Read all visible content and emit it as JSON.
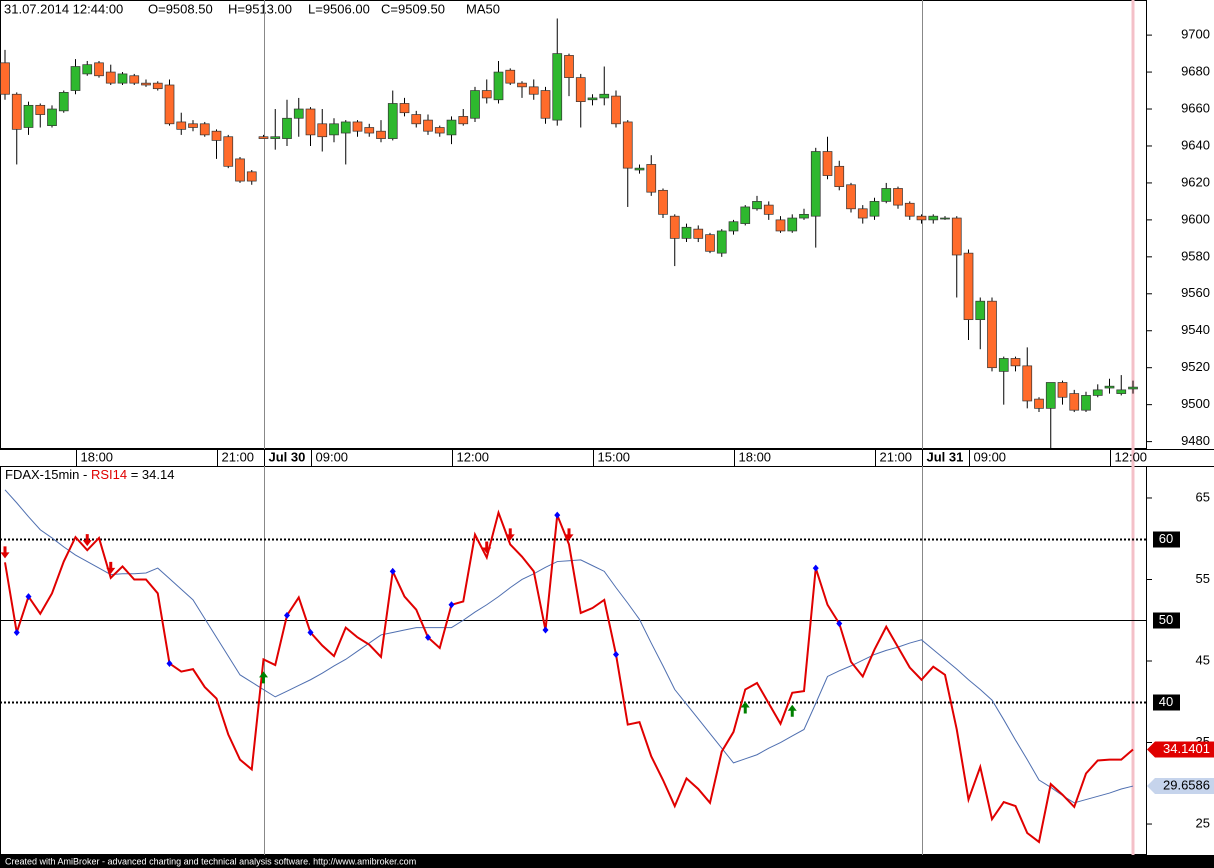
{
  "chart_data": [
    {
      "type": "candlestick",
      "title": "31.07.2014 12:44:00",
      "ohlc_labels": [
        "O=9508.50",
        "H=9513.00",
        "L=9506.00",
        "C=9509.50"
      ],
      "indicator_label": "MA50",
      "up_color": "#2eb82e",
      "down_color": "#ff6b2b",
      "open": [
        9685,
        9668,
        9650,
        9662,
        9651,
        9659,
        9670,
        9679,
        9685,
        9680,
        9674,
        9678,
        9674,
        9674,
        9673,
        9653,
        9652,
        9652,
        9648,
        9645,
        9633,
        9626,
        9645,
        9644,
        9644,
        9655,
        9660,
        9652,
        9646,
        9647,
        9653,
        9650,
        9648,
        9644,
        9663,
        9657,
        9654,
        9650,
        9646,
        9656,
        9655,
        9670,
        9665,
        9681,
        9674,
        9672,
        9670,
        9654,
        9689,
        9677,
        9665,
        9666,
        9667,
        9653,
        9627,
        9630,
        9616,
        9602,
        9590,
        9595,
        9592,
        9582,
        9594,
        9598,
        9606,
        9608,
        9600,
        9594,
        9601,
        9602,
        9637,
        9629,
        9619,
        9606,
        9602,
        9610,
        9617,
        9609,
        9602,
        9600,
        9601,
        9601,
        9582,
        9546,
        9556,
        9518,
        9525,
        9521,
        9503,
        9498,
        9512,
        9506,
        9497,
        9505,
        9509,
        9506,
        9508.5
      ],
      "high": [
        9692,
        9669,
        9664,
        9663,
        9662,
        9670,
        9687,
        9686,
        9686,
        9684,
        9680,
        9679,
        9676,
        9675,
        9676,
        9658,
        9654,
        9653,
        9649,
        9646,
        9634,
        9627,
        9646,
        9660,
        9665,
        9666,
        9661,
        9660,
        9655,
        9654,
        9654,
        9652,
        9654,
        9670,
        9666,
        9659,
        9657,
        9651,
        9656,
        9660,
        9672,
        9676,
        9686,
        9682,
        9675,
        9676,
        9672,
        9709,
        9690,
        9679,
        9668,
        9683,
        9670,
        9654,
        9630,
        9635,
        9617,
        9603,
        9598,
        9597,
        9593,
        9595,
        9600,
        9608,
        9613,
        9610,
        9602,
        9603,
        9606,
        9639,
        9645,
        9632,
        9620,
        9608,
        9612,
        9620,
        9618,
        9610,
        9603,
        9603,
        9602,
        9602,
        9584,
        9558,
        9558,
        9526,
        9526,
        9531,
        9504,
        9512,
        9513,
        9508,
        9507,
        9511,
        9514,
        9516,
        9513
      ],
      "low": [
        9665,
        9630,
        9646,
        9650,
        9650,
        9658,
        9668,
        9678,
        9677,
        9673,
        9673,
        9673,
        9672,
        9670,
        9651,
        9646,
        9648,
        9645,
        9633,
        9628,
        9620,
        9619,
        9644,
        9638,
        9640,
        9645,
        9640,
        9637,
        9642,
        9630,
        9645,
        9645,
        9642,
        9643,
        9656,
        9650,
        9646,
        9645,
        9641,
        9651,
        9653,
        9663,
        9663,
        9673,
        9666,
        9665,
        9652,
        9651,
        9667,
        9650,
        9662,
        9662,
        9650,
        9607,
        9625,
        9613,
        9601,
        9575,
        9588,
        9588,
        9582,
        9580,
        9592,
        9597,
        9605,
        9600,
        9593,
        9593,
        9600,
        9585,
        9622,
        9616,
        9604,
        9598,
        9600,
        9609,
        9606,
        9600,
        9598,
        9598,
        9600,
        9558,
        9535,
        9530,
        9518,
        9500,
        9518,
        9498,
        9496,
        9476,
        9500,
        9496,
        9496,
        9504,
        9506,
        9505,
        9506
      ],
      "close": [
        9668,
        9649,
        9662,
        9657,
        9660,
        9669,
        9683,
        9684,
        9678,
        9674,
        9679,
        9674,
        9673,
        9671,
        9652,
        9649,
        9650,
        9646,
        9643,
        9629,
        9621,
        9621,
        9644,
        9645,
        9655,
        9660,
        9646,
        9645,
        9652,
        9653,
        9648,
        9647,
        9644,
        9663,
        9658,
        9652,
        9648,
        9647,
        9654,
        9652,
        9670,
        9666,
        9680,
        9674,
        9672,
        9668,
        9655,
        9690,
        9677,
        9664,
        9666,
        9668,
        9652,
        9628,
        9628,
        9615,
        9603,
        9590,
        9596,
        9590,
        9583,
        9594,
        9599,
        9607,
        9610,
        9603,
        9594,
        9601,
        9603,
        9637,
        9624,
        9618,
        9606,
        9601,
        9610,
        9617,
        9608,
        9602,
        9600,
        9602,
        9601,
        9581,
        9546,
        9556,
        9520,
        9525,
        9521,
        9502,
        9498,
        9512,
        9504,
        9497,
        9505,
        9508,
        9510,
        9508,
        9509.5
      ],
      "ylim": [
        9476,
        9719
      ],
      "yticks": [
        9480,
        9500,
        9520,
        9540,
        9560,
        9580,
        9600,
        9620,
        9640,
        9660,
        9680,
        9700
      ],
      "xticks": [
        {
          "value": 6,
          "label": "18:00"
        },
        {
          "value": 18,
          "label": "21:00"
        },
        {
          "value": 22,
          "label": "Jul 30",
          "bold": true
        },
        {
          "value": 26,
          "label": "09:00"
        },
        {
          "value": 38,
          "label": "12:00"
        },
        {
          "value": 50,
          "label": "15:00"
        },
        {
          "value": 62,
          "label": "18:00"
        },
        {
          "value": 74,
          "label": "21:00"
        },
        {
          "value": 78,
          "label": "Jul 31",
          "bold": true
        },
        {
          "value": 82,
          "label": "09:00"
        },
        {
          "value": 94,
          "label": "12:00"
        }
      ],
      "day_breaks": [
        22,
        78
      ]
    },
    {
      "type": "line",
      "title_parts": [
        "FDAX-15min - ",
        "RSI14",
        " = 34.14"
      ],
      "series": [
        {
          "name": "RSI14",
          "color": "#e00000",
          "last_label": "34.1401",
          "values": [
            57.1,
            48.5,
            52.9,
            50.8,
            53.3,
            57.2,
            60.2,
            58.6,
            60.1,
            55.2,
            56.6,
            55.0,
            55.0,
            53.3,
            44.7,
            43.7,
            44.0,
            41.8,
            40.4,
            36.0,
            32.9,
            31.7,
            45.2,
            44.5,
            50.6,
            52.8,
            48.5,
            46.9,
            45.6,
            49.1,
            47.9,
            47.0,
            45.5,
            56.0,
            52.9,
            51.3,
            47.9,
            46.6,
            51.9,
            52.3,
            60.5,
            57.7,
            63.2,
            59.3,
            57.8,
            56.0,
            48.8,
            62.9,
            59.3,
            50.9,
            51.5,
            52.5,
            45.8,
            37.2,
            37.5,
            33.3,
            30.4,
            27.2,
            30.6,
            29.3,
            27.6,
            33.9,
            36.3,
            41.5,
            42.3,
            39.8,
            37.3,
            41.1,
            41.3,
            56.4,
            51.9,
            49.6,
            44.9,
            43.1,
            46.4,
            49.2,
            46.7,
            44.2,
            42.7,
            44.3,
            43.3,
            36.6,
            28.0,
            32.0,
            25.6,
            27.7,
            27.2,
            23.9,
            22.8,
            29.9,
            28.6,
            27.1,
            31.2,
            32.8,
            32.9,
            32.9,
            34.1401
          ]
        },
        {
          "color": "#4f6fb0",
          "last_label": "29.6586",
          "values": [
            66.0,
            64.4,
            62.7,
            61.1,
            60.1,
            59.0,
            58.0,
            57.2,
            56.4,
            55.6,
            55.7,
            55.7,
            55.8,
            56.4,
            55.1,
            53.8,
            52.5,
            50.2,
            47.9,
            45.6,
            43.3,
            42.4,
            41.5,
            40.6,
            41.3,
            42.0,
            42.7,
            43.5,
            44.4,
            45.2,
            46.2,
            47.2,
            48.2,
            48.5,
            48.8,
            49.1,
            49.1,
            49.1,
            49.1,
            50.0,
            51.0,
            51.9,
            52.9,
            54.0,
            55.0,
            55.7,
            56.5,
            57.2,
            57.3,
            57.4,
            56.7,
            56.0,
            54.0,
            52.1,
            50.1,
            47.2,
            44.4,
            41.5,
            39.7,
            37.9,
            36.1,
            34.3,
            32.5,
            33.0,
            33.5,
            34.3,
            35.0,
            35.8,
            36.6,
            39.8,
            43.1,
            43.8,
            44.4,
            45.1,
            45.8,
            46.3,
            46.7,
            47.2,
            47.6,
            46.4,
            45.2,
            44.0,
            42.7,
            41.5,
            40.2,
            37.8,
            35.3,
            32.9,
            30.4,
            29.5,
            28.5,
            27.6,
            28.0,
            28.4,
            28.8,
            29.3,
            29.6586
          ]
        }
      ],
      "sell_signals": [
        0,
        7,
        9,
        41,
        43,
        48
      ],
      "buy_signals": [
        22,
        63,
        67
      ],
      "dot_signals": [
        1,
        2,
        14,
        24,
        26,
        33,
        36,
        38,
        46,
        47,
        52,
        69,
        71
      ],
      "levels": [
        {
          "value": 60,
          "style": "dotted"
        },
        {
          "value": 50,
          "style": "solid"
        },
        {
          "value": 40,
          "style": "dotted"
        }
      ],
      "ylim": [
        21.2,
        68.8
      ],
      "yticks": [
        25,
        35,
        45,
        55,
        65
      ]
    }
  ],
  "footer": "Created with AmiBroker - advanced charting and technical analysis software. http://www.amibroker.com"
}
